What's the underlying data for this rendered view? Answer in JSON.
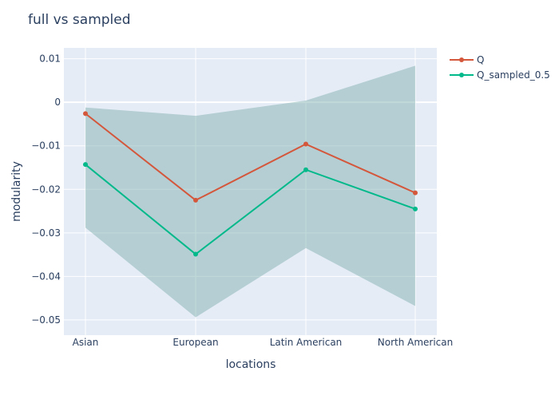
{
  "chart_data": {
    "type": "line",
    "title": "full vs sampled",
    "xlabel": "locations",
    "ylabel": "modularity",
    "categories": [
      "Asian",
      "European",
      "Latin American",
      "North American"
    ],
    "ylim": [
      -0.0535,
      0.0125
    ],
    "yticks": [
      0.01,
      0,
      -0.01,
      -0.02,
      -0.03,
      -0.04,
      -0.05
    ],
    "ytick_labels": [
      "0.01",
      "0",
      "−0.01",
      "−0.02",
      "−0.03",
      "−0.04",
      "−0.05"
    ],
    "grid": true,
    "legend_position": "top-right",
    "series": [
      {
        "name": "Q",
        "values": [
          -0.0026,
          -0.0225,
          -0.0096,
          -0.0208
        ],
        "color": "#d4573b"
      },
      {
        "name": "Q_sampled_0.5",
        "values": [
          -0.0143,
          -0.0349,
          -0.0155,
          -0.0245
        ],
        "color": "#00b98a"
      }
    ],
    "band": {
      "upper": [
        -0.0012,
        -0.0031,
        0.0004,
        0.0084
      ],
      "lower": [
        -0.0288,
        -0.0494,
        -0.0335,
        -0.0468
      ],
      "color": "rgba(120,170,170,0.45)"
    },
    "colors": {
      "plot_bg": "#e5ecf6",
      "grid": "#ffffff",
      "text": "#2a3f5f"
    }
  }
}
